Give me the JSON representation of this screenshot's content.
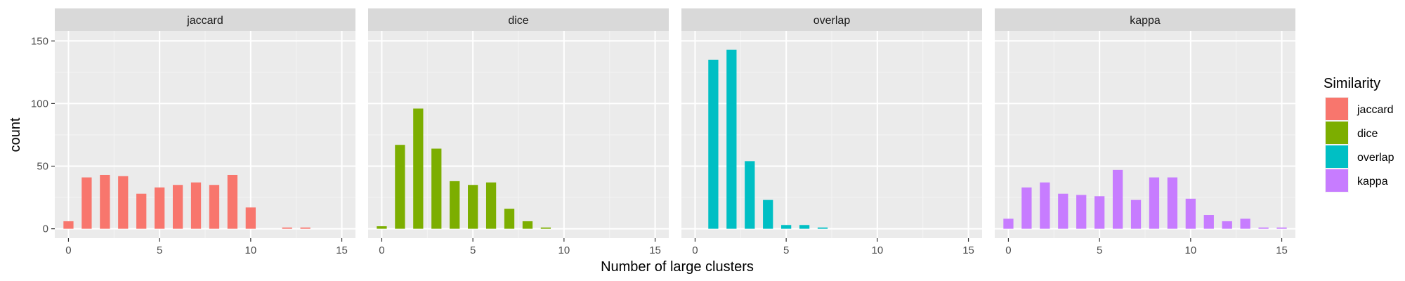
{
  "chart_data": {
    "type": "bar",
    "xlabel": "Number of large clusters",
    "ylabel": "count",
    "xlim": [
      -0.75,
      15.75
    ],
    "ylim": [
      -7.5,
      158
    ],
    "x_ticks": [
      0,
      5,
      10,
      15
    ],
    "y_ticks": [
      0,
      50,
      100,
      150
    ],
    "grid": true,
    "legend": {
      "title": "Similarity",
      "position": "right",
      "entries": [
        {
          "label": "jaccard",
          "color": "#F8766D"
        },
        {
          "label": "dice",
          "color": "#7CAE00"
        },
        {
          "label": "overlap",
          "color": "#00BFC4"
        },
        {
          "label": "kappa",
          "color": "#C77CFF"
        }
      ]
    },
    "series": [
      {
        "name": "jaccard",
        "color": "#F8766D",
        "x": [
          0,
          1,
          2,
          3,
          4,
          5,
          6,
          7,
          8,
          9,
          10,
          12,
          13
        ],
        "values": [
          6,
          41,
          43,
          42,
          28,
          33,
          35,
          37,
          35,
          43,
          17,
          1,
          1
        ]
      },
      {
        "name": "dice",
        "color": "#7CAE00",
        "x": [
          0,
          1,
          2,
          3,
          4,
          5,
          6,
          7,
          8,
          9
        ],
        "values": [
          2,
          67,
          96,
          64,
          38,
          35,
          37,
          16,
          6,
          1
        ]
      },
      {
        "name": "overlap",
        "color": "#00BFC4",
        "x": [
          1,
          2,
          3,
          4,
          5,
          6,
          7
        ],
        "values": [
          135,
          143,
          54,
          23,
          3,
          3,
          1
        ]
      },
      {
        "name": "kappa",
        "color": "#C77CFF",
        "x": [
          0,
          1,
          2,
          3,
          4,
          5,
          6,
          7,
          8,
          9,
          10,
          11,
          12,
          13,
          14,
          15
        ],
        "values": [
          8,
          33,
          37,
          28,
          27,
          26,
          47,
          23,
          41,
          41,
          24,
          11,
          6,
          8,
          1,
          1
        ]
      }
    ]
  }
}
